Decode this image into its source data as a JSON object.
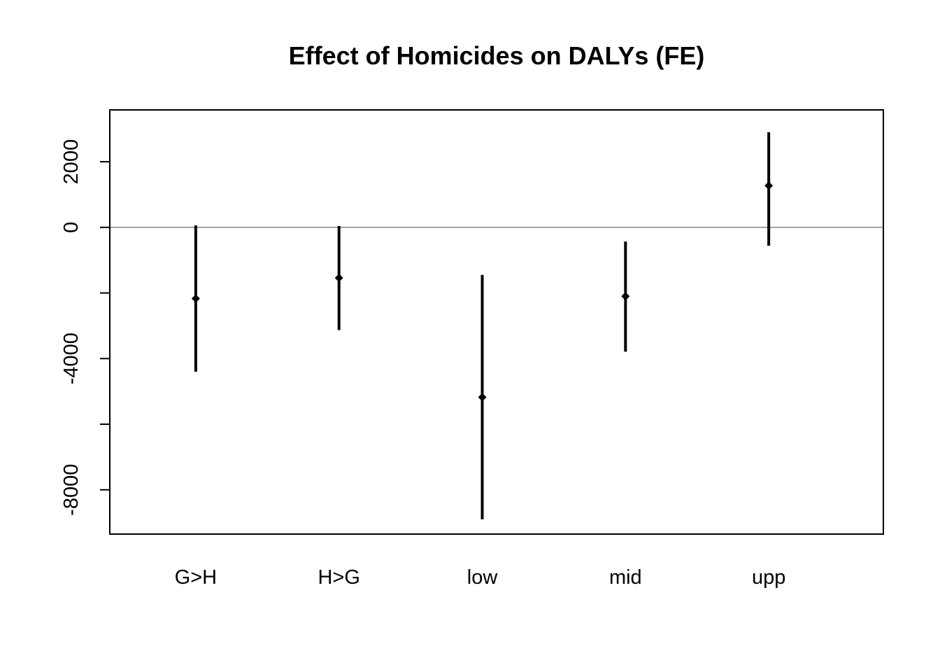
{
  "chart_data": {
    "type": "errorbar",
    "title": "Effect of Homicides on DALYs (FE)",
    "xlabel": "",
    "ylabel": "",
    "categories": [
      "G>H",
      "H>G",
      "low",
      "mid",
      "upp"
    ],
    "estimates": [
      -2170,
      -1540,
      -5180,
      -2100,
      1270
    ],
    "lower": [
      -4400,
      -3130,
      -8900,
      -3790,
      -560
    ],
    "upper": [
      60,
      40,
      -1450,
      -430,
      2900
    ],
    "ylim": [
      -9350,
      3580
    ],
    "yticks": [
      -8000,
      -6000,
      -4000,
      -2000,
      0,
      2000
    ],
    "ytick_labels": [
      "-8000",
      "",
      "-4000",
      "",
      "0",
      "2000"
    ],
    "reference_line": 0,
    "grid": false,
    "legend": "none",
    "colors": {
      "marks": "#000000",
      "reference_line": "#6b6b6b"
    }
  }
}
